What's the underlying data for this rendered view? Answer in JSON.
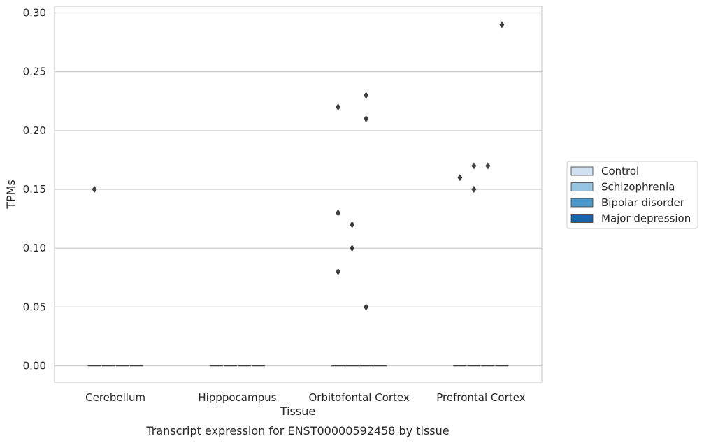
{
  "chart_data": {
    "type": "boxplot",
    "caption": "Transcript expression for ENST00000592458 by tissue",
    "xlabel": "Tissue",
    "ylabel": "TPMs",
    "categories": [
      "Cerebellum",
      "Hipppocampus",
      "Orbitofontal Cortex",
      "Prefrontal Cortex"
    ],
    "ylim": [
      -0.014,
      0.305
    ],
    "yticks": [
      "0.00",
      "0.05",
      "0.10",
      "0.15",
      "0.20",
      "0.25",
      "0.30"
    ],
    "grid": true,
    "legend_position": "right",
    "series": [
      {
        "name": "Control",
        "color": "#d0e1f2",
        "box_values": [
          0,
          0,
          0,
          0
        ],
        "outliers": [
          [
            0.15
          ],
          [],
          [
            0.22,
            0.13,
            0.08
          ],
          [
            0.16
          ]
        ]
      },
      {
        "name": "Schizophrenia",
        "color": "#94c4df",
        "box_values": [
          0,
          0,
          0,
          0
        ],
        "outliers": [
          [],
          [],
          [
            0.12,
            0.1
          ],
          [
            0.17,
            0.15
          ]
        ]
      },
      {
        "name": "Bipolar disorder",
        "color": "#4a98c9",
        "box_values": [
          0,
          0,
          0,
          0
        ],
        "outliers": [
          [],
          [],
          [
            0.23,
            0.21,
            0.05
          ],
          [
            0.17
          ]
        ]
      },
      {
        "name": "Major depression",
        "color": "#1764ab",
        "box_values": [
          0,
          0,
          0,
          0
        ],
        "outliers": [
          [],
          [],
          [],
          [
            0.29
          ]
        ]
      }
    ]
  }
}
